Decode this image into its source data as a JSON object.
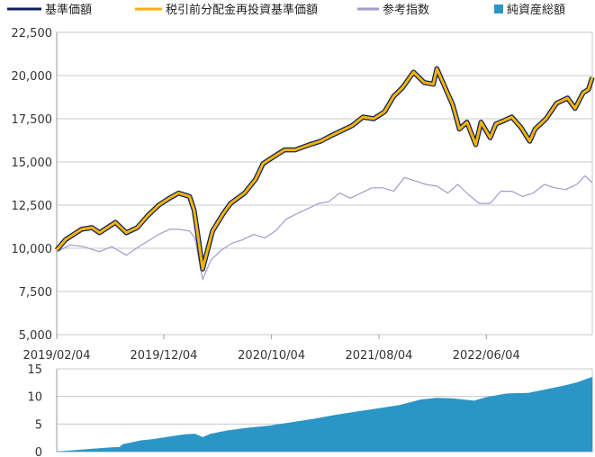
{
  "colors": {
    "nav": "#0d1f5c",
    "nav_reinvested": "#f5b400",
    "reference_index": "#a49ad0",
    "net_assets": "#2b95c6",
    "grid": "#c8c8c8",
    "axis": "#999999"
  },
  "legend": [
    {
      "key": "nav",
      "label": "基準価額",
      "style": "line"
    },
    {
      "key": "nav_reinvested",
      "label": "税引前分配金再投資基準価額",
      "style": "line"
    },
    {
      "key": "reference_index",
      "label": "参考指数",
      "style": "line"
    },
    {
      "key": "net_assets",
      "label": "純資産総額",
      "style": "square"
    }
  ],
  "chart_data": [
    {
      "type": "line",
      "x_tick_labels": [
        "2019/02/04",
        "2019/12/04",
        "2020/10/04",
        "2021/08/04",
        "2022/06/04"
      ],
      "x_range": [
        "2019/02/04",
        "2023/03/31"
      ],
      "ylim": [
        5000,
        22500
      ],
      "y_ticks": [
        5000,
        7500,
        10000,
        12500,
        15000,
        17500,
        20000,
        22500
      ],
      "y_tick_labels": [
        "5,000",
        "7,500",
        "10,000",
        "12,500",
        "15,000",
        "17,500",
        "20,000",
        "22,500"
      ],
      "grid": true,
      "legend_position": "top",
      "series": [
        {
          "name": "基準価額",
          "key": "nav",
          "points": [
            [
              "2019-02-04",
              9900
            ],
            [
              "2019-03-01",
              10500
            ],
            [
              "2019-04-15",
              11100
            ],
            [
              "2019-05-15",
              11200
            ],
            [
              "2019-06-05",
              10900
            ],
            [
              "2019-07-20",
              11500
            ],
            [
              "2019-08-20",
              10900
            ],
            [
              "2019-09-20",
              11200
            ],
            [
              "2019-10-20",
              11900
            ],
            [
              "2019-11-20",
              12500
            ],
            [
              "2019-12-20",
              12900
            ],
            [
              "2020-01-15",
              13200
            ],
            [
              "2020-02-15",
              13000
            ],
            [
              "2020-02-28",
              12200
            ],
            [
              "2020-03-12",
              10400
            ],
            [
              "2020-03-23",
              8800
            ],
            [
              "2020-04-20",
              11000
            ],
            [
              "2020-05-20",
              12000
            ],
            [
              "2020-06-10",
              12600
            ],
            [
              "2020-07-20",
              13200
            ],
            [
              "2020-08-20",
              14000
            ],
            [
              "2020-09-10",
              14900
            ],
            [
              "2020-10-10",
              15300
            ],
            [
              "2020-11-10",
              15700
            ],
            [
              "2020-12-10",
              15700
            ],
            [
              "2021-01-20",
              16000
            ],
            [
              "2021-02-20",
              16200
            ],
            [
              "2021-03-20",
              16500
            ],
            [
              "2021-04-20",
              16800
            ],
            [
              "2021-05-20",
              17100
            ],
            [
              "2021-06-20",
              17600
            ],
            [
              "2021-07-20",
              17500
            ],
            [
              "2021-08-20",
              17900
            ],
            [
              "2021-09-15",
              18800
            ],
            [
              "2021-10-10",
              19300
            ],
            [
              "2021-11-10",
              20200
            ],
            [
              "2021-12-10",
              19600
            ],
            [
              "2022-01-05",
              19500
            ],
            [
              "2022-01-15",
              20400
            ],
            [
              "2022-01-30",
              19700
            ],
            [
              "2022-03-01",
              18300
            ],
            [
              "2022-03-20",
              16900
            ],
            [
              "2022-04-10",
              17300
            ],
            [
              "2022-05-05",
              16000
            ],
            [
              "2022-05-20",
              17300
            ],
            [
              "2022-06-15",
              16400
            ],
            [
              "2022-07-01",
              17200
            ],
            [
              "2022-07-25",
              17400
            ],
            [
              "2022-08-15",
              17600
            ],
            [
              "2022-09-10",
              17000
            ],
            [
              "2022-10-05",
              16200
            ],
            [
              "2022-10-20",
              16900
            ],
            [
              "2022-11-20",
              17500
            ],
            [
              "2022-12-20",
              18400
            ],
            [
              "2023-01-20",
              18700
            ],
            [
              "2023-02-10",
              18100
            ],
            [
              "2023-03-05",
              19000
            ],
            [
              "2023-03-20",
              19200
            ],
            [
              "2023-03-31",
              19900
            ]
          ]
        },
        {
          "name": "税引前分配金再投資基準価額",
          "key": "nav_reinvested",
          "points": [
            [
              "2019-02-04",
              9900
            ],
            [
              "2019-03-01",
              10500
            ],
            [
              "2019-04-15",
              11100
            ],
            [
              "2019-05-15",
              11200
            ],
            [
              "2019-06-05",
              10900
            ],
            [
              "2019-07-20",
              11500
            ],
            [
              "2019-08-20",
              10900
            ],
            [
              "2019-09-20",
              11200
            ],
            [
              "2019-10-20",
              11900
            ],
            [
              "2019-11-20",
              12500
            ],
            [
              "2019-12-20",
              12900
            ],
            [
              "2020-01-15",
              13200
            ],
            [
              "2020-02-15",
              13000
            ],
            [
              "2020-02-28",
              12200
            ],
            [
              "2020-03-12",
              10400
            ],
            [
              "2020-03-23",
              8800
            ],
            [
              "2020-04-20",
              11000
            ],
            [
              "2020-05-20",
              12000
            ],
            [
              "2020-06-10",
              12600
            ],
            [
              "2020-07-20",
              13200
            ],
            [
              "2020-08-20",
              14000
            ],
            [
              "2020-09-10",
              14900
            ],
            [
              "2020-10-10",
              15300
            ],
            [
              "2020-11-10",
              15700
            ],
            [
              "2020-12-10",
              15700
            ],
            [
              "2021-01-20",
              16000
            ],
            [
              "2021-02-20",
              16200
            ],
            [
              "2021-03-20",
              16500
            ],
            [
              "2021-04-20",
              16800
            ],
            [
              "2021-05-20",
              17100
            ],
            [
              "2021-06-20",
              17600
            ],
            [
              "2021-07-20",
              17500
            ],
            [
              "2021-08-20",
              17900
            ],
            [
              "2021-09-15",
              18800
            ],
            [
              "2021-10-10",
              19300
            ],
            [
              "2021-11-10",
              20200
            ],
            [
              "2021-12-10",
              19600
            ],
            [
              "2022-01-05",
              19500
            ],
            [
              "2022-01-15",
              20400
            ],
            [
              "2022-01-30",
              19700
            ],
            [
              "2022-03-01",
              18300
            ],
            [
              "2022-03-20",
              16900
            ],
            [
              "2022-04-10",
              17300
            ],
            [
              "2022-05-05",
              16000
            ],
            [
              "2022-05-20",
              17300
            ],
            [
              "2022-06-15",
              16400
            ],
            [
              "2022-07-01",
              17200
            ],
            [
              "2022-07-25",
              17400
            ],
            [
              "2022-08-15",
              17600
            ],
            [
              "2022-09-10",
              17000
            ],
            [
              "2022-10-05",
              16200
            ],
            [
              "2022-10-20",
              16900
            ],
            [
              "2022-11-20",
              17500
            ],
            [
              "2022-12-20",
              18400
            ],
            [
              "2023-01-20",
              18700
            ],
            [
              "2023-02-10",
              18100
            ],
            [
              "2023-03-05",
              19000
            ],
            [
              "2023-03-20",
              19200
            ],
            [
              "2023-03-31",
              19900
            ]
          ]
        },
        {
          "name": "参考指数",
          "key": "reference_index",
          "points": [
            [
              "2019-02-04",
              9800
            ],
            [
              "2019-03-15",
              10200
            ],
            [
              "2019-04-20",
              10100
            ],
            [
              "2019-06-05",
              9800
            ],
            [
              "2019-07-10",
              10100
            ],
            [
              "2019-08-20",
              9600
            ],
            [
              "2019-09-25",
              10100
            ],
            [
              "2019-11-20",
              10800
            ],
            [
              "2019-12-20",
              11100
            ],
            [
              "2020-01-15",
              11100
            ],
            [
              "2020-02-15",
              11000
            ],
            [
              "2020-03-01",
              10600
            ],
            [
              "2020-03-23",
              8200
            ],
            [
              "2020-04-15",
              9300
            ],
            [
              "2020-05-15",
              9900
            ],
            [
              "2020-06-15",
              10300
            ],
            [
              "2020-07-15",
              10500
            ],
            [
              "2020-08-15",
              10800
            ],
            [
              "2020-09-15",
              10600
            ],
            [
              "2020-10-15",
              11000
            ],
            [
              "2020-11-15",
              11700
            ],
            [
              "2020-12-15",
              12000
            ],
            [
              "2021-01-15",
              12300
            ],
            [
              "2021-02-15",
              12600
            ],
            [
              "2021-03-15",
              12700
            ],
            [
              "2021-04-15",
              13200
            ],
            [
              "2021-05-15",
              12900
            ],
            [
              "2021-06-15",
              13200
            ],
            [
              "2021-07-15",
              13500
            ],
            [
              "2021-08-15",
              13500
            ],
            [
              "2021-09-15",
              13300
            ],
            [
              "2021-10-15",
              14100
            ],
            [
              "2021-11-15",
              13900
            ],
            [
              "2021-12-15",
              13700
            ],
            [
              "2022-01-15",
              13600
            ],
            [
              "2022-02-15",
              13200
            ],
            [
              "2022-03-15",
              13700
            ],
            [
              "2022-04-15",
              13100
            ],
            [
              "2022-05-15",
              12600
            ],
            [
              "2022-06-15",
              12600
            ],
            [
              "2022-07-15",
              13300
            ],
            [
              "2022-08-15",
              13300
            ],
            [
              "2022-09-15",
              13000
            ],
            [
              "2022-10-15",
              13200
            ],
            [
              "2022-11-15",
              13700
            ],
            [
              "2022-12-15",
              13500
            ],
            [
              "2023-01-15",
              13400
            ],
            [
              "2023-02-15",
              13700
            ],
            [
              "2023-03-10",
              14200
            ],
            [
              "2023-03-31",
              13800
            ]
          ]
        }
      ]
    },
    {
      "type": "area",
      "x_range": [
        "2019/02/04",
        "2023/03/31"
      ],
      "ylim": [
        0,
        15
      ],
      "y_ticks": [
        0,
        5,
        10,
        15
      ],
      "y_tick_labels": [
        "0",
        "5",
        "10",
        "15"
      ],
      "series": [
        {
          "name": "純資産総額",
          "key": "net_assets",
          "points": [
            [
              "2019-02-04",
              0
            ],
            [
              "2019-03-01",
              0.1
            ],
            [
              "2019-05-01",
              0.4
            ],
            [
              "2019-07-01",
              0.7
            ],
            [
              "2019-08-01",
              0.8
            ],
            [
              "2019-08-10",
              1.3
            ],
            [
              "2019-10-01",
              2.0
            ],
            [
              "2019-11-01",
              2.2
            ],
            [
              "2019-12-01",
              2.5
            ],
            [
              "2020-01-01",
              2.8
            ],
            [
              "2020-02-01",
              3.1
            ],
            [
              "2020-03-01",
              3.2
            ],
            [
              "2020-03-23",
              2.6
            ],
            [
              "2020-04-15",
              3.2
            ],
            [
              "2020-06-01",
              3.8
            ],
            [
              "2020-08-01",
              4.3
            ],
            [
              "2020-10-01",
              4.7
            ],
            [
              "2020-12-01",
              5.3
            ],
            [
              "2021-02-01",
              5.9
            ],
            [
              "2021-04-01",
              6.6
            ],
            [
              "2021-06-01",
              7.2
            ],
            [
              "2021-08-01",
              7.8
            ],
            [
              "2021-10-01",
              8.4
            ],
            [
              "2021-12-01",
              9.4
            ],
            [
              "2022-01-15",
              9.7
            ],
            [
              "2022-03-01",
              9.6
            ],
            [
              "2022-05-01",
              9.2
            ],
            [
              "2022-06-01",
              9.8
            ],
            [
              "2022-08-01",
              10.5
            ],
            [
              "2022-10-01",
              10.6
            ],
            [
              "2022-12-01",
              11.4
            ],
            [
              "2023-01-15",
              12.0
            ],
            [
              "2023-02-15",
              12.5
            ],
            [
              "2023-03-31",
              13.5
            ]
          ]
        }
      ]
    }
  ]
}
